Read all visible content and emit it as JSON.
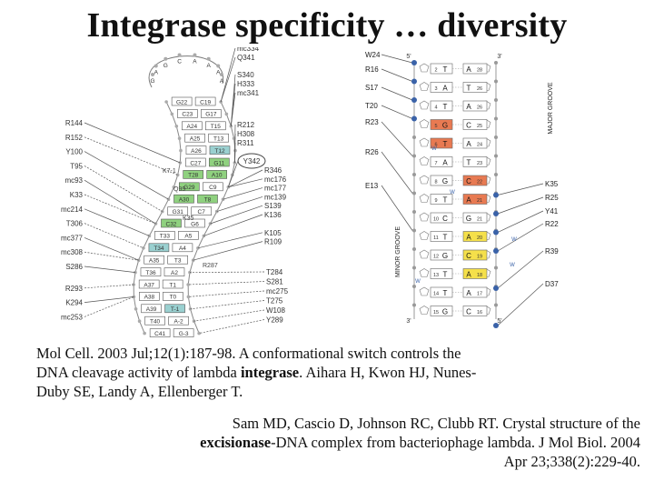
{
  "title": "Integrase specificity … diversity",
  "left_figure": {
    "loop_letters": [
      "G",
      "A",
      "G",
      "C",
      "A",
      "A",
      "A",
      "A"
    ],
    "pairs": [
      {
        "l": "G22",
        "r": "C19",
        "lc": "#ffffff",
        "rc": "#ffffff"
      },
      {
        "l": "C23",
        "r": "G17",
        "lc": "#ffffff",
        "rc": "#ffffff"
      },
      {
        "l": "A24",
        "r": "T15",
        "lc": "#ffffff",
        "rc": "#ffffff"
      },
      {
        "l": "A25",
        "r": "T13",
        "lc": "#ffffff",
        "rc": "#ffffff"
      },
      {
        "l": "A26",
        "r": "T12",
        "lc": "#ffffff",
        "rc": "#9ad0d0"
      },
      {
        "l": "C27",
        "r": "G11",
        "lc": "#ffffff",
        "rc": "#8fd17f"
      },
      {
        "l": "T28",
        "r": "A10",
        "lc": "#8fd17f",
        "rc": "#8fd17f"
      },
      {
        "l": "G29",
        "r": "C9",
        "lc": "#8fd17f",
        "rc": "#ffffff"
      },
      {
        "l": "A30",
        "r": "T8",
        "lc": "#8fd17f",
        "rc": "#8fd17f"
      },
      {
        "l": "G31",
        "r": "C7",
        "lc": "#ffffff",
        "rc": "#ffffff"
      },
      {
        "l": "C32",
        "r": "G6",
        "lc": "#8fd17f",
        "rc": "#ffffff"
      },
      {
        "l": "T33",
        "r": "A5",
        "lc": "#ffffff",
        "rc": "#ffffff"
      },
      {
        "l": "T34",
        "r": "A4",
        "lc": "#9ad0d0",
        "rc": "#ffffff"
      },
      {
        "l": "A35",
        "r": "T3",
        "lc": "#ffffff",
        "rc": "#ffffff"
      },
      {
        "l": "T36",
        "r": "A2",
        "lc": "#ffffff",
        "rc": "#ffffff"
      },
      {
        "l": "A37",
        "r": "T1",
        "lc": "#ffffff",
        "rc": "#ffffff"
      },
      {
        "l": "A38",
        "r": "T0",
        "lc": "#ffffff",
        "rc": "#ffffff"
      },
      {
        "l": "A39",
        "r": "T-1",
        "lc": "#ffffff",
        "rc": "#9ad0d0"
      },
      {
        "l": "T40",
        "r": "A-2",
        "lc": "#ffffff",
        "rc": "#ffffff"
      },
      {
        "l": "C41",
        "r": "G-3",
        "lc": "#ffffff",
        "rc": "#ffffff"
      }
    ],
    "labels_left": [
      "R144",
      "R152",
      "Y100",
      "T95",
      "mc93",
      "K33",
      "mc214",
      "T306",
      "mc377",
      "mc308",
      "S286",
      "R293",
      "K294",
      "mc253"
    ],
    "labels_right_top": [
      "mc334",
      "Q341",
      "S340",
      "H333",
      "mc341",
      "R212",
      "H308",
      "R311"
    ],
    "label_y342": "Y342",
    "labels_right_mid": [
      "R346",
      "mc176",
      "mc177",
      "mc139",
      "S139",
      "K136",
      "K105",
      "R109"
    ],
    "labels_inner": [
      "K7-1",
      "Q99",
      "K35",
      "R287"
    ],
    "labels_right_bottom": [
      "T284",
      "S281",
      "mc275",
      "T275",
      "W108",
      "Y289"
    ]
  },
  "right_figure": {
    "label_5prime": "5'",
    "label_3prime": "3'",
    "rows": [
      {
        "n": "2",
        "l": "T",
        "r": "A",
        "rn": "28",
        "lc": "#ffffff",
        "rc": "#ffffff"
      },
      {
        "n": "3",
        "l": "A",
        "r": "T",
        "rn": "26",
        "lc": "#ffffff",
        "rc": "#ffffff"
      },
      {
        "n": "4",
        "l": "T",
        "r": "A",
        "rn": "26",
        "lc": "#ffffff",
        "rc": "#ffffff"
      },
      {
        "n": "5",
        "l": "G",
        "r": "C",
        "rn": "25",
        "lc": "#e87a52",
        "rc": "#ffffff"
      },
      {
        "n": "6",
        "l": "T",
        "r": "A",
        "rn": "24",
        "lc": "#e87a52",
        "rc": "#ffffff"
      },
      {
        "n": "7",
        "l": "A",
        "r": "T",
        "rn": "23",
        "lc": "#ffffff",
        "rc": "#ffffff"
      },
      {
        "n": "8",
        "l": "G",
        "r": "C",
        "rn": "22",
        "lc": "#ffffff",
        "rc": "#e87a52"
      },
      {
        "n": "9",
        "l": "T",
        "r": "A",
        "rn": "21",
        "lc": "#ffffff",
        "rc": "#e87a52"
      },
      {
        "n": "10",
        "l": "C",
        "r": "G",
        "rn": "21",
        "lc": "#ffffff",
        "rc": "#ffffff"
      },
      {
        "n": "11",
        "l": "T",
        "r": "A",
        "rn": "20",
        "lc": "#ffffff",
        "rc": "#f5e04a"
      },
      {
        "n": "12",
        "l": "G",
        "r": "C",
        "rn": "19",
        "lc": "#ffffff",
        "rc": "#f5e04a"
      },
      {
        "n": "13",
        "l": "T",
        "r": "A",
        "rn": "18",
        "lc": "#ffffff",
        "rc": "#f5e04a"
      },
      {
        "n": "14",
        "l": "T",
        "r": "A",
        "rn": "17",
        "lc": "#ffffff",
        "rc": "#ffffff"
      },
      {
        "n": "15",
        "l": "G",
        "r": "C",
        "rn": "16",
        "lc": "#ffffff",
        "rc": "#ffffff"
      }
    ],
    "labels_left": [
      "W24",
      "R16",
      "S17",
      "T20",
      "R23",
      "R26",
      "E13"
    ],
    "labels_right": [
      "K35",
      "R25",
      "Y41",
      "R22",
      "R39",
      "D37"
    ],
    "minor_groove": "MINOR GROOVE",
    "major_groove": "MAJOR GROOVE",
    "water_label": "W"
  },
  "citation1": {
    "pre": "Mol Cell. 2003 Jul;12(1):187-98. A conformational switch controls the DNA cleavage activity of lambda ",
    "bold": "integrase",
    "post": ". Aihara H, Kwon HJ, Nunes-Duby SE, Landy A, Ellenberger T."
  },
  "citation2": {
    "pre": "Sam MD, Cascio D, Johnson RC, Clubb RT. Crystal structure of the ",
    "bold": "excisionase",
    "post": "-DNA complex from bacteriophage lambda. J Mol Biol. 2004 Apr 23;338(2):229-40."
  }
}
